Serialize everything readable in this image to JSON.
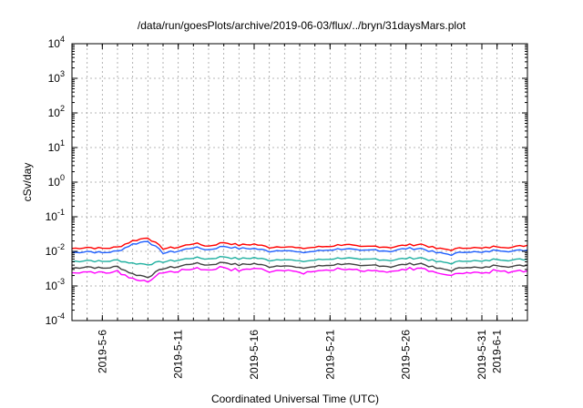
{
  "chart_data": {
    "type": "line",
    "title": "/data/run/goesPlots/archive/2019-06-03/flux/../bryn/31daysMars.plot",
    "xlabel": "Coordinated Universal Time (UTC)",
    "ylabel": "cSv/day",
    "yscale": "log",
    "ylim": [
      0.0001,
      10000
    ],
    "xlim": [
      "2019-05-04",
      "2019-06-03"
    ],
    "grid": true,
    "x_ticks": [
      "2019-5-6",
      "2019-5-11",
      "2019-5-16",
      "2019-5-21",
      "2019-5-26",
      "2019-5-31",
      "2019-6-1"
    ],
    "y_ticks": [
      {
        "base": "10",
        "exp": "-4",
        "value": 0.0001
      },
      {
        "base": "10",
        "exp": "-3",
        "value": 0.001
      },
      {
        "base": "10",
        "exp": "-2",
        "value": 0.01
      },
      {
        "base": "10",
        "exp": "-1",
        "value": 0.1
      },
      {
        "base": "10",
        "exp": "0",
        "value": 1
      },
      {
        "base": "10",
        "exp": "1",
        "value": 10
      },
      {
        "base": "10",
        "exp": "2",
        "value": 100
      },
      {
        "base": "10",
        "exp": "3",
        "value": 1000
      },
      {
        "base": "10",
        "exp": "4",
        "value": 10000
      }
    ],
    "x": [
      "2019-05-04",
      "2019-05-05",
      "2019-05-06",
      "2019-05-07",
      "2019-05-08",
      "2019-05-09",
      "2019-05-10",
      "2019-05-11",
      "2019-05-12",
      "2019-05-13",
      "2019-05-14",
      "2019-05-15",
      "2019-05-16",
      "2019-05-17",
      "2019-05-18",
      "2019-05-19",
      "2019-05-20",
      "2019-05-21",
      "2019-05-22",
      "2019-05-23",
      "2019-05-24",
      "2019-05-25",
      "2019-05-26",
      "2019-05-27",
      "2019-05-28",
      "2019-05-29",
      "2019-05-30",
      "2019-05-31",
      "2019-06-01",
      "2019-06-02",
      "2019-06-03"
    ],
    "series": [
      {
        "color": "#ff0000",
        "values": [
          0.012,
          0.013,
          0.012,
          0.013,
          0.02,
          0.025,
          0.012,
          0.013,
          0.017,
          0.014,
          0.018,
          0.015,
          0.016,
          0.013,
          0.014,
          0.012,
          0.013,
          0.014,
          0.016,
          0.013,
          0.014,
          0.013,
          0.015,
          0.016,
          0.012,
          0.011,
          0.013,
          0.012,
          0.014,
          0.013,
          0.015
        ]
      },
      {
        "color": "#2060ff",
        "values": [
          0.009,
          0.01,
          0.009,
          0.01,
          0.016,
          0.02,
          0.009,
          0.01,
          0.013,
          0.011,
          0.014,
          0.012,
          0.012,
          0.01,
          0.011,
          0.009,
          0.01,
          0.011,
          0.012,
          0.01,
          0.011,
          0.01,
          0.012,
          0.012,
          0.009,
          0.008,
          0.01,
          0.009,
          0.011,
          0.01,
          0.011
        ]
      },
      {
        "color": "#20b0a0",
        "values": [
          0.005,
          0.0055,
          0.005,
          0.0055,
          0.0045,
          0.0042,
          0.005,
          0.0055,
          0.0065,
          0.006,
          0.007,
          0.006,
          0.0065,
          0.0055,
          0.006,
          0.005,
          0.0055,
          0.006,
          0.0065,
          0.0055,
          0.006,
          0.0055,
          0.0062,
          0.0065,
          0.005,
          0.0045,
          0.0055,
          0.005,
          0.006,
          0.0055,
          0.006
        ]
      },
      {
        "color": "#404040",
        "values": [
          0.0032,
          0.0036,
          0.0032,
          0.0036,
          0.0022,
          0.0018,
          0.0032,
          0.0036,
          0.0045,
          0.004,
          0.0048,
          0.004,
          0.0044,
          0.0036,
          0.004,
          0.0032,
          0.0036,
          0.004,
          0.0044,
          0.0036,
          0.004,
          0.0036,
          0.0042,
          0.0044,
          0.0032,
          0.0028,
          0.0036,
          0.0032,
          0.004,
          0.0036,
          0.004
        ]
      },
      {
        "color": "#ff00ff",
        "values": [
          0.0025,
          0.0028,
          0.0025,
          0.0028,
          0.0017,
          0.0014,
          0.0025,
          0.0028,
          0.0035,
          0.003,
          0.0036,
          0.0028,
          0.0033,
          0.0027,
          0.003,
          0.0024,
          0.0027,
          0.003,
          0.0033,
          0.0026,
          0.003,
          0.0027,
          0.0032,
          0.0034,
          0.0024,
          0.0021,
          0.0027,
          0.0024,
          0.003,
          0.0027,
          0.003
        ]
      }
    ]
  }
}
